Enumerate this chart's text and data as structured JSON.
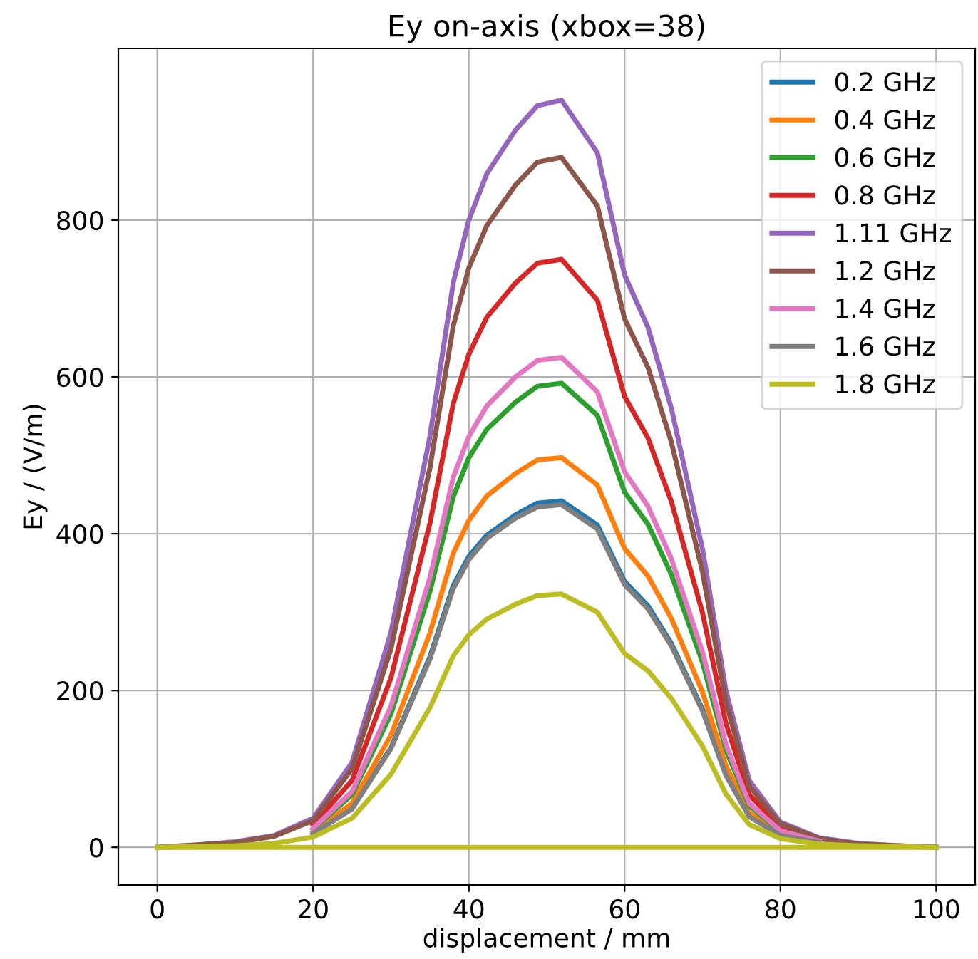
{
  "chart_data": {
    "type": "line",
    "title": "Ey on-axis (xbox=38)",
    "xlabel": "displacement / mm",
    "ylabel": "Ey / (V/m)",
    "x": [
      0,
      5,
      10,
      15,
      20,
      25,
      30,
      35,
      38,
      40,
      42.3,
      46,
      48.8,
      51.9,
      56.5,
      60,
      63,
      66,
      70,
      73,
      76,
      80,
      85,
      90,
      95,
      100
    ],
    "series": [
      {
        "name": "0.2 GHz",
        "color": "#1f77b4",
        "values": [
          null,
          null,
          null,
          null,
          null,
          50,
          127,
          243,
          334,
          371,
          398,
          424,
          439,
          442,
          411,
          339,
          308,
          260,
          176,
          93,
          null,
          null,
          null,
          null,
          null,
          null
        ]
      },
      {
        "name": "0.4 GHz",
        "color": "#ff7f0e",
        "values": [
          null,
          null,
          null,
          null,
          19,
          56,
          143,
          273,
          375,
          417,
          448,
          477,
          494,
          497,
          462,
          381,
          346,
          292,
          198,
          104,
          44,
          17,
          6,
          null,
          null,
          null
        ]
      },
      {
        "name": "0.6 GHz",
        "color": "#2ca02c",
        "values": [
          null,
          null,
          null,
          null,
          23,
          67,
          170,
          326,
          447,
          497,
          533,
          568,
          588,
          592,
          551,
          453,
          412,
          348,
          236,
          124,
          53,
          20,
          8,
          null,
          null,
          null
        ]
      },
      {
        "name": "0.8 GHz",
        "color": "#d62728",
        "values": [
          null,
          null,
          null,
          null,
          29,
          85,
          216,
          413,
          566,
          629,
          676,
          720,
          745,
          750,
          698,
          575,
          522,
          441,
          299,
          158,
          67,
          26,
          10,
          null,
          null,
          null
        ]
      },
      {
        "name": "1.11 GHz",
        "color": "#9467bd",
        "values": [
          0,
          3,
          7,
          15,
          37,
          108,
          274,
          524,
          720,
          800,
          859,
          915,
          946,
          953,
          886,
          730,
          663,
          560,
          380,
          200,
          85,
          32,
          12,
          5,
          2,
          0
        ]
      },
      {
        "name": "1.2 GHz",
        "color": "#8c564b",
        "values": [
          0,
          3,
          6,
          14,
          34,
          100,
          253,
          484,
          665,
          739,
          793,
          845,
          874,
          880,
          818,
          674,
          612,
          517,
          351,
          185,
          78,
          30,
          11,
          4,
          2,
          0
        ]
      },
      {
        "name": "1.4 GHz",
        "color": "#e377c2",
        "values": [
          null,
          null,
          null,
          null,
          24,
          71,
          180,
          344,
          472,
          524,
          563,
          600,
          621,
          625,
          581,
          479,
          435,
          368,
          249,
          131,
          56,
          21,
          8,
          null,
          null,
          null
        ]
      },
      {
        "name": "1.6 GHz",
        "color": "#7f7f7f",
        "values": [
          null,
          null,
          null,
          null,
          17,
          49,
          126,
          240,
          330,
          367,
          394,
          420,
          434,
          437,
          406,
          335,
          304,
          257,
          174,
          92,
          39,
          15,
          6,
          null,
          null,
          null
        ]
      },
      {
        "name": "1.8 GHz",
        "color": "#bcbd22",
        "values": [
          0,
          1,
          2,
          5,
          13,
          37,
          93,
          178,
          244,
          271,
          291,
          310,
          321,
          323,
          300,
          247,
          225,
          190,
          129,
          68,
          29,
          11,
          4,
          2,
          1,
          0
        ]
      },
      {
        "color": "#bcbd22",
        "x": [
          0,
          100
        ],
        "values": [
          0,
          0
        ]
      }
    ],
    "xlim": [
      -5,
      105
    ],
    "ylim": [
      -48,
      1019
    ],
    "xticks": [
      0,
      20,
      40,
      60,
      80,
      100
    ],
    "yticks": [
      0,
      200,
      400,
      600,
      800
    ],
    "grid": true,
    "legend": "top right",
    "marker": "none",
    "line_style": "solid"
  }
}
